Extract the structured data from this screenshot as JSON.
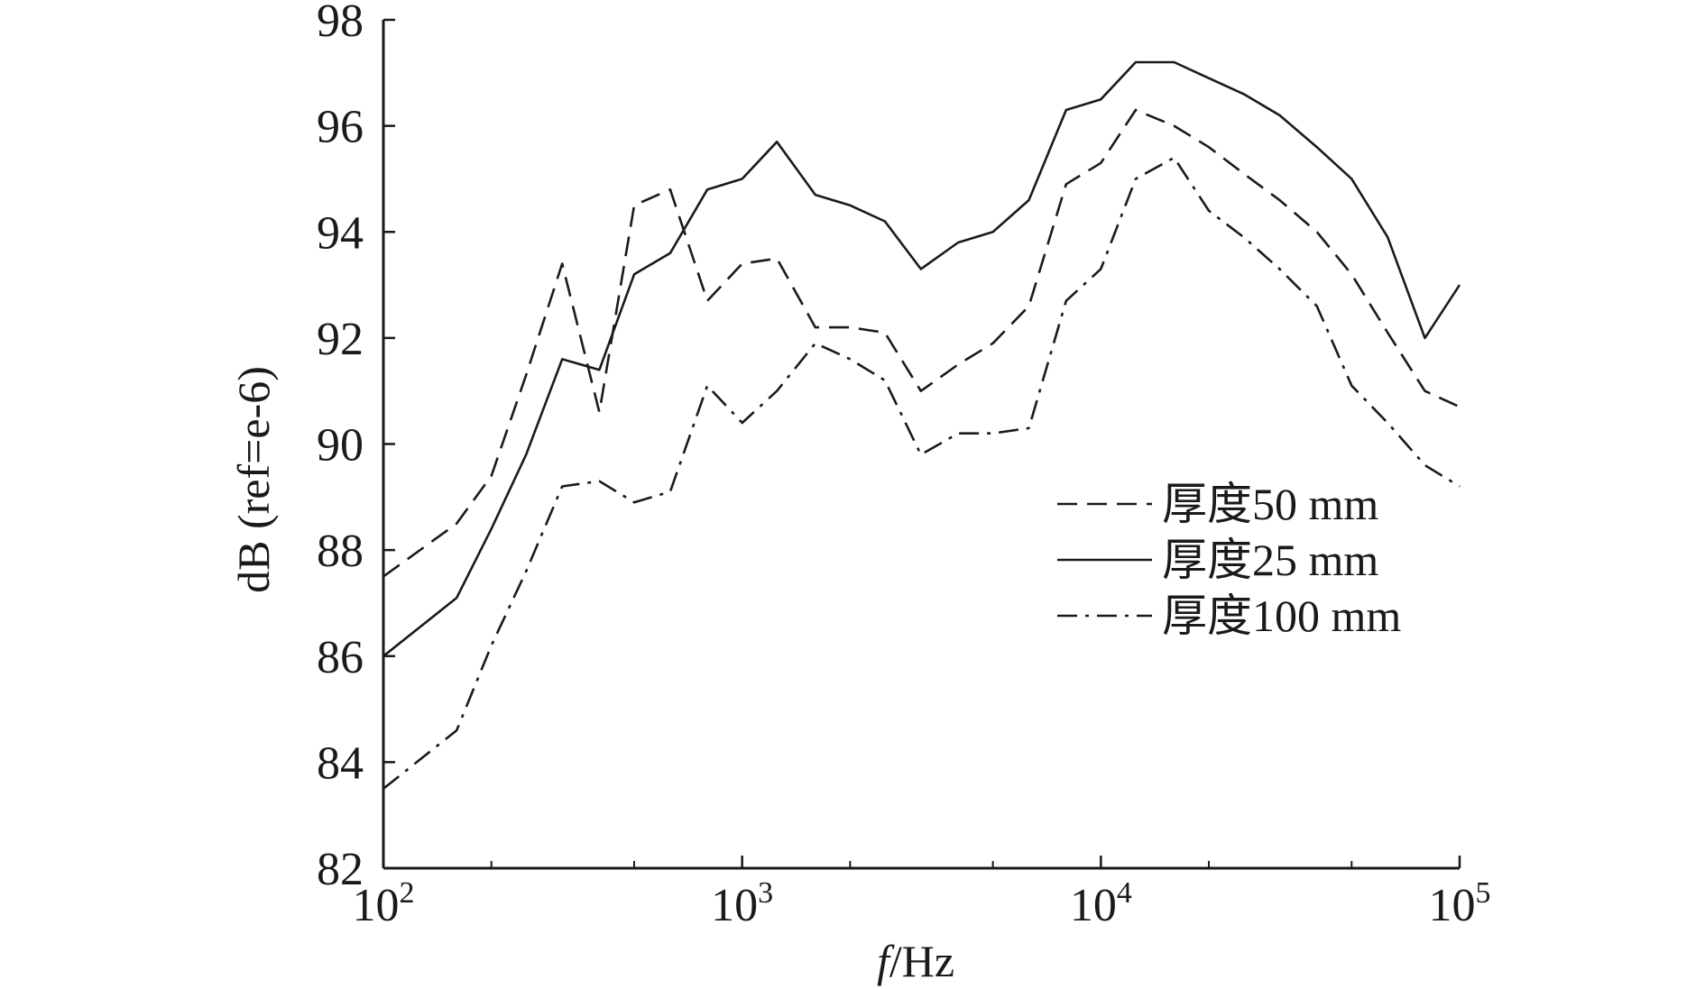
{
  "chart_data": {
    "type": "line",
    "xscale": "log",
    "xlabel_italic": "f",
    "xlabel_rest": "/Hz",
    "ylabel": "dB (ref=e-6)",
    "xlim": [
      100,
      100000
    ],
    "ylim": [
      82,
      98
    ],
    "x_ticks": [
      {
        "value": 100,
        "base": "10",
        "exp": "2"
      },
      {
        "value": 1000,
        "base": "10",
        "exp": "3"
      },
      {
        "value": 10000,
        "base": "10",
        "exp": "4"
      },
      {
        "value": 100000,
        "base": "10",
        "exp": "5"
      }
    ],
    "y_ticks": [
      82,
      84,
      86,
      88,
      90,
      92,
      94,
      96,
      98
    ],
    "legend_position": "right-middle",
    "colors": {
      "line": "#1a1a1a",
      "axis": "#1a1a1a"
    },
    "series": [
      {
        "name": "厚度50 mm",
        "dash": "dashed",
        "points": [
          [
            100,
            87.5
          ],
          [
            160,
            88.5
          ],
          [
            200,
            89.4
          ],
          [
            250,
            91.3
          ],
          [
            315,
            93.4
          ],
          [
            400,
            90.6
          ],
          [
            500,
            94.5
          ],
          [
            630,
            94.8
          ],
          [
            800,
            92.7
          ],
          [
            1000,
            93.4
          ],
          [
            1250,
            93.5
          ],
          [
            1600,
            92.2
          ],
          [
            2000,
            92.2
          ],
          [
            2500,
            92.1
          ],
          [
            3150,
            91.0
          ],
          [
            4000,
            91.5
          ],
          [
            5000,
            91.9
          ],
          [
            6300,
            92.6
          ],
          [
            8000,
            94.9
          ],
          [
            10000,
            95.3
          ],
          [
            12500,
            96.3
          ],
          [
            16000,
            96.0
          ],
          [
            20000,
            95.6
          ],
          [
            25000,
            95.1
          ],
          [
            31500,
            94.6
          ],
          [
            40000,
            94.0
          ],
          [
            50000,
            93.2
          ],
          [
            63000,
            92.1
          ],
          [
            80000,
            91.0
          ],
          [
            100000,
            90.7
          ]
        ]
      },
      {
        "name": "厚度25 mm",
        "dash": "solid",
        "points": [
          [
            100,
            86.0
          ],
          [
            160,
            87.1
          ],
          [
            200,
            88.4
          ],
          [
            250,
            89.8
          ],
          [
            315,
            91.6
          ],
          [
            400,
            91.4
          ],
          [
            500,
            93.2
          ],
          [
            630,
            93.6
          ],
          [
            800,
            94.8
          ],
          [
            1000,
            95.0
          ],
          [
            1250,
            95.7
          ],
          [
            1600,
            94.7
          ],
          [
            2000,
            94.5
          ],
          [
            2500,
            94.2
          ],
          [
            3150,
            93.3
          ],
          [
            4000,
            93.8
          ],
          [
            5000,
            94.0
          ],
          [
            6300,
            94.6
          ],
          [
            8000,
            96.3
          ],
          [
            10000,
            96.5
          ],
          [
            12500,
            97.2
          ],
          [
            16000,
            97.2
          ],
          [
            20000,
            96.9
          ],
          [
            25000,
            96.6
          ],
          [
            31500,
            96.2
          ],
          [
            40000,
            95.6
          ],
          [
            50000,
            95.0
          ],
          [
            63000,
            93.9
          ],
          [
            80000,
            92.0
          ],
          [
            100000,
            93.0
          ]
        ]
      },
      {
        "name": "厚度100 mm",
        "dash": "dashdot",
        "points": [
          [
            100,
            83.5
          ],
          [
            160,
            84.6
          ],
          [
            200,
            86.2
          ],
          [
            250,
            87.6
          ],
          [
            315,
            89.2
          ],
          [
            400,
            89.3
          ],
          [
            500,
            88.9
          ],
          [
            630,
            89.1
          ],
          [
            800,
            91.1
          ],
          [
            1000,
            90.4
          ],
          [
            1250,
            91.0
          ],
          [
            1600,
            91.9
          ],
          [
            2000,
            91.6
          ],
          [
            2500,
            91.2
          ],
          [
            3150,
            89.8
          ],
          [
            4000,
            90.2
          ],
          [
            5000,
            90.2
          ],
          [
            6300,
            90.3
          ],
          [
            8000,
            92.7
          ],
          [
            10000,
            93.3
          ],
          [
            12500,
            95.0
          ],
          [
            16000,
            95.4
          ],
          [
            20000,
            94.4
          ],
          [
            25000,
            93.9
          ],
          [
            31500,
            93.3
          ],
          [
            40000,
            92.6
          ],
          [
            50000,
            91.1
          ],
          [
            63000,
            90.4
          ],
          [
            80000,
            89.6
          ],
          [
            100000,
            89.2
          ]
        ]
      }
    ]
  }
}
